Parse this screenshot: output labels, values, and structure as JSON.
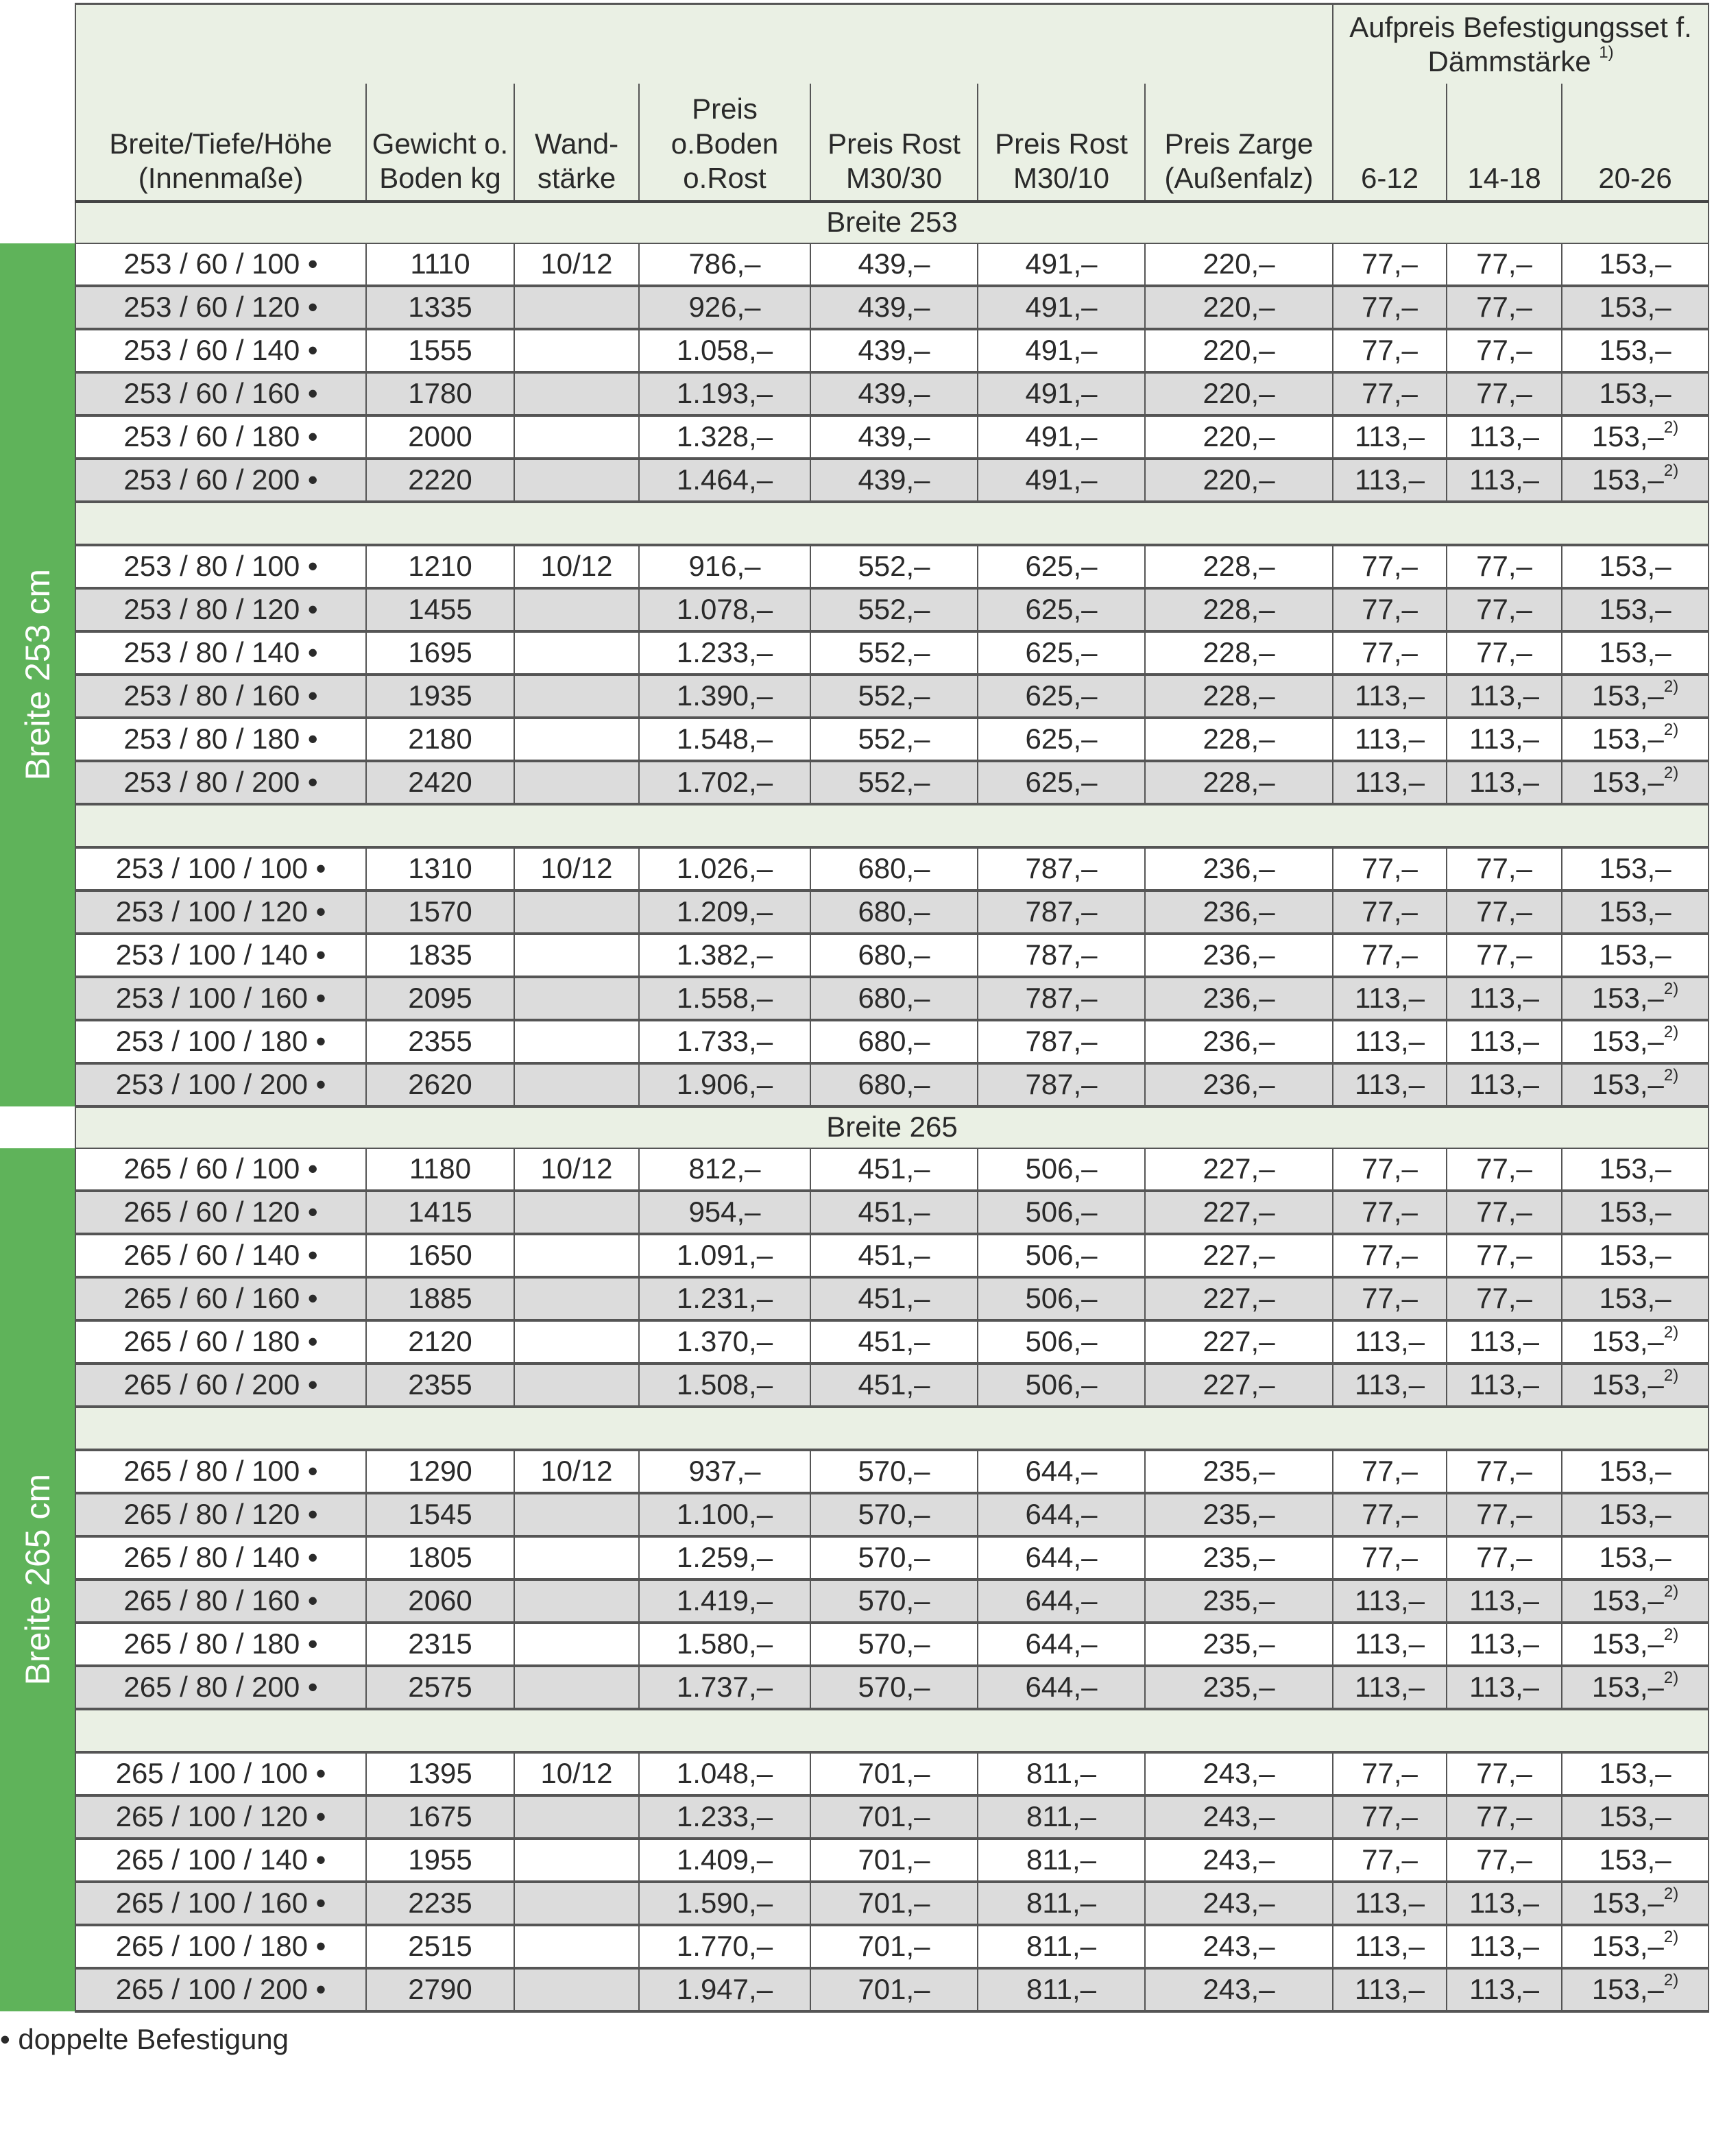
{
  "header": {
    "dims": "Breite/Tiefe/Höhe (Innenmaße)",
    "weight": "Gewicht o. Boden kg",
    "wall": "Wand- stärke",
    "price": "Preis o.Boden o.Rost",
    "rost30": "Preis Rost M30/30",
    "rost10": "Preis Rost M30/10",
    "zarge": "Preis Zarge (Außenfalz)",
    "aufpreis": "Aufpreis Befestigungsset f. Dämmstärke",
    "aufpreis_note": "1)",
    "ins": [
      "6-12",
      "14-18",
      "20-26"
    ]
  },
  "colors": {
    "accent_green": "#5fb35a",
    "header_bg": "#eaf0e4",
    "stripe_grey": "#dcdcdc"
  },
  "sections": [
    {
      "title": "Breite 253",
      "side_label": "Breite 253 cm",
      "groups": [
        [
          [
            "253 / 60 / 100 •",
            "1110",
            "10/12",
            "786,–",
            "439,–",
            "491,–",
            "220,–",
            "77,–",
            "77,–",
            "153,–",
            ""
          ],
          [
            "253 / 60 / 120 •",
            "1335",
            "",
            "926,–",
            "439,–",
            "491,–",
            "220,–",
            "77,–",
            "77,–",
            "153,–",
            ""
          ],
          [
            "253 / 60 / 140 •",
            "1555",
            "",
            "1.058,–",
            "439,–",
            "491,–",
            "220,–",
            "77,–",
            "77,–",
            "153,–",
            ""
          ],
          [
            "253 / 60 / 160 •",
            "1780",
            "",
            "1.193,–",
            "439,–",
            "491,–",
            "220,–",
            "77,–",
            "77,–",
            "153,–",
            ""
          ],
          [
            "253 / 60 / 180 •",
            "2000",
            "",
            "1.328,–",
            "439,–",
            "491,–",
            "220,–",
            "113,–",
            "113,–",
            "153,–",
            "2)"
          ],
          [
            "253 / 60 / 200 •",
            "2220",
            "",
            "1.464,–",
            "439,–",
            "491,–",
            "220,–",
            "113,–",
            "113,–",
            "153,–",
            "2)"
          ]
        ],
        [
          [
            "253 / 80 / 100 •",
            "1210",
            "10/12",
            "916,–",
            "552,–",
            "625,–",
            "228,–",
            "77,–",
            "77,–",
            "153,–",
            ""
          ],
          [
            "253 / 80 / 120 •",
            "1455",
            "",
            "1.078,–",
            "552,–",
            "625,–",
            "228,–",
            "77,–",
            "77,–",
            "153,–",
            ""
          ],
          [
            "253 / 80 / 140 •",
            "1695",
            "",
            "1.233,–",
            "552,–",
            "625,–",
            "228,–",
            "77,–",
            "77,–",
            "153,–",
            ""
          ],
          [
            "253 / 80 / 160 •",
            "1935",
            "",
            "1.390,–",
            "552,–",
            "625,–",
            "228,–",
            "113,–",
            "113,–",
            "153,–",
            "2)"
          ],
          [
            "253 / 80 / 180 •",
            "2180",
            "",
            "1.548,–",
            "552,–",
            "625,–",
            "228,–",
            "113,–",
            "113,–",
            "153,–",
            "2)"
          ],
          [
            "253 / 80 / 200 •",
            "2420",
            "",
            "1.702,–",
            "552,–",
            "625,–",
            "228,–",
            "113,–",
            "113,–",
            "153,–",
            "2)"
          ]
        ],
        [
          [
            "253 / 100 / 100 •",
            "1310",
            "10/12",
            "1.026,–",
            "680,–",
            "787,–",
            "236,–",
            "77,–",
            "77,–",
            "153,–",
            ""
          ],
          [
            "253 / 100 / 120 •",
            "1570",
            "",
            "1.209,–",
            "680,–",
            "787,–",
            "236,–",
            "77,–",
            "77,–",
            "153,–",
            ""
          ],
          [
            "253 / 100 / 140 •",
            "1835",
            "",
            "1.382,–",
            "680,–",
            "787,–",
            "236,–",
            "77,–",
            "77,–",
            "153,–",
            ""
          ],
          [
            "253 / 100 / 160 •",
            "2095",
            "",
            "1.558,–",
            "680,–",
            "787,–",
            "236,–",
            "113,–",
            "113,–",
            "153,–",
            "2)"
          ],
          [
            "253 / 100 / 180 •",
            "2355",
            "",
            "1.733,–",
            "680,–",
            "787,–",
            "236,–",
            "113,–",
            "113,–",
            "153,–",
            "2)"
          ],
          [
            "253 / 100 / 200 •",
            "2620",
            "",
            "1.906,–",
            "680,–",
            "787,–",
            "236,–",
            "113,–",
            "113,–",
            "153,–",
            "2)"
          ]
        ]
      ]
    },
    {
      "title": "Breite 265",
      "side_label": "Breite 265 cm",
      "groups": [
        [
          [
            "265 / 60 / 100 •",
            "1180",
            "10/12",
            "812,–",
            "451,–",
            "506,–",
            "227,–",
            "77,–",
            "77,–",
            "153,–",
            ""
          ],
          [
            "265 / 60 / 120 •",
            "1415",
            "",
            "954,–",
            "451,–",
            "506,–",
            "227,–",
            "77,–",
            "77,–",
            "153,–",
            ""
          ],
          [
            "265 / 60 / 140 •",
            "1650",
            "",
            "1.091,–",
            "451,–",
            "506,–",
            "227,–",
            "77,–",
            "77,–",
            "153,–",
            ""
          ],
          [
            "265 / 60 / 160 •",
            "1885",
            "",
            "1.231,–",
            "451,–",
            "506,–",
            "227,–",
            "77,–",
            "77,–",
            "153,–",
            ""
          ],
          [
            "265 / 60 / 180 •",
            "2120",
            "",
            "1.370,–",
            "451,–",
            "506,–",
            "227,–",
            "113,–",
            "113,–",
            "153,–",
            "2)"
          ],
          [
            "265 / 60 / 200 •",
            "2355",
            "",
            "1.508,–",
            "451,–",
            "506,–",
            "227,–",
            "113,–",
            "113,–",
            "153,–",
            "2)"
          ]
        ],
        [
          [
            "265 / 80 / 100 •",
            "1290",
            "10/12",
            "937,–",
            "570,–",
            "644,–",
            "235,–",
            "77,–",
            "77,–",
            "153,–",
            ""
          ],
          [
            "265 / 80 / 120 •",
            "1545",
            "",
            "1.100,–",
            "570,–",
            "644,–",
            "235,–",
            "77,–",
            "77,–",
            "153,–",
            ""
          ],
          [
            "265 / 80 / 140 •",
            "1805",
            "",
            "1.259,–",
            "570,–",
            "644,–",
            "235,–",
            "77,–",
            "77,–",
            "153,–",
            ""
          ],
          [
            "265 / 80 / 160 •",
            "2060",
            "",
            "1.419,–",
            "570,–",
            "644,–",
            "235,–",
            "113,–",
            "113,–",
            "153,–",
            "2)"
          ],
          [
            "265 / 80 / 180 •",
            "2315",
            "",
            "1.580,–",
            "570,–",
            "644,–",
            "235,–",
            "113,–",
            "113,–",
            "153,–",
            "2)"
          ],
          [
            "265 / 80 / 200 •",
            "2575",
            "",
            "1.737,–",
            "570,–",
            "644,–",
            "235,–",
            "113,–",
            "113,–",
            "153,–",
            "2)"
          ]
        ],
        [
          [
            "265 / 100 / 100 •",
            "1395",
            "10/12",
            "1.048,–",
            "701,–",
            "811,–",
            "243,–",
            "77,–",
            "77,–",
            "153,–",
            ""
          ],
          [
            "265 / 100 / 120 •",
            "1675",
            "",
            "1.233,–",
            "701,–",
            "811,–",
            "243,–",
            "77,–",
            "77,–",
            "153,–",
            ""
          ],
          [
            "265 / 100 / 140 •",
            "1955",
            "",
            "1.409,–",
            "701,–",
            "811,–",
            "243,–",
            "77,–",
            "77,–",
            "153,–",
            ""
          ],
          [
            "265 / 100 / 160 •",
            "2235",
            "",
            "1.590,–",
            "701,–",
            "811,–",
            "243,–",
            "113,–",
            "113,–",
            "153,–",
            "2)"
          ],
          [
            "265 / 100 / 180 •",
            "2515",
            "",
            "1.770,–",
            "701,–",
            "811,–",
            "243,–",
            "113,–",
            "113,–",
            "153,–",
            "2)"
          ],
          [
            "265 / 100 / 200 •",
            "2790",
            "",
            "1.947,–",
            "701,–",
            "811,–",
            "243,–",
            "113,–",
            "113,–",
            "153,–",
            "2)"
          ]
        ]
      ]
    }
  ],
  "footer": "• doppelte Befestigung"
}
